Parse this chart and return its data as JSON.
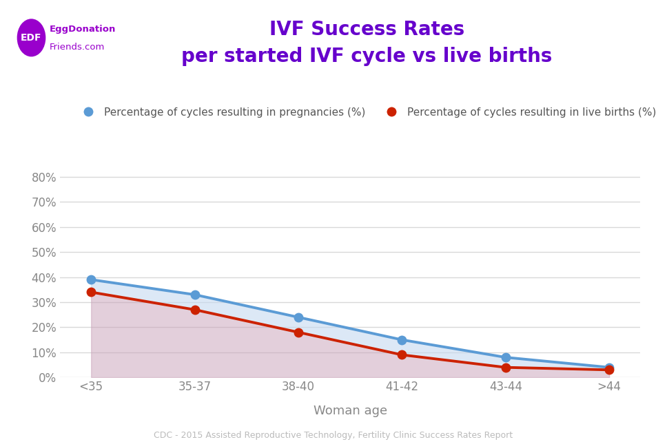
{
  "title_line1": "IVF Success Rates",
  "title_line2": "per started IVF cycle vs live births",
  "title_color": "#6600cc",
  "xlabel": "Woman age",
  "xlabel_color": "#888888",
  "source_text": "CDC - 2015 Assisted Reproductive Technology, Fertility Clinic Success Rates Report",
  "categories": [
    "<35",
    "35-37",
    "38-40",
    "41-42",
    "43-44",
    ">44"
  ],
  "pregnancies": [
    0.39,
    0.33,
    0.24,
    0.15,
    0.08,
    0.04
  ],
  "live_births": [
    0.34,
    0.27,
    0.18,
    0.09,
    0.04,
    0.03
  ],
  "line_blue_color": "#5b9bd5",
  "line_red_color": "#cc2200",
  "marker_blue_color": "#5b9bd5",
  "marker_red_color": "#cc2200",
  "fill_blue_color": "#c5d9f1",
  "fill_blue_alpha": 0.6,
  "fill_red_color": "#c9a0b8",
  "fill_red_alpha": 0.5,
  "legend_label_blue": "Percentage of cycles resulting in pregnancies (%)",
  "legend_label_red": "Percentage of cycles resulting in live births (%)",
  "ytick_labels": [
    "0%",
    "10%",
    "20%",
    "30%",
    "40%",
    "50%",
    "60%",
    "70%",
    "80%"
  ],
  "ytick_values": [
    0,
    0.1,
    0.2,
    0.3,
    0.4,
    0.5,
    0.6,
    0.7,
    0.8
  ],
  "ylim": [
    0,
    0.85
  ],
  "background_color": "#ffffff",
  "grid_color": "#d8d8d8",
  "logo_bg_color": "#9900cc",
  "logo_text": "EDF",
  "logo_label_line1": "EggDonation",
  "logo_label_line2": "Friends.com",
  "logo_label_color": "#9900cc",
  "line_width": 2.8,
  "marker_size": 9,
  "tick_color": "#888888",
  "tick_fontsize": 12
}
